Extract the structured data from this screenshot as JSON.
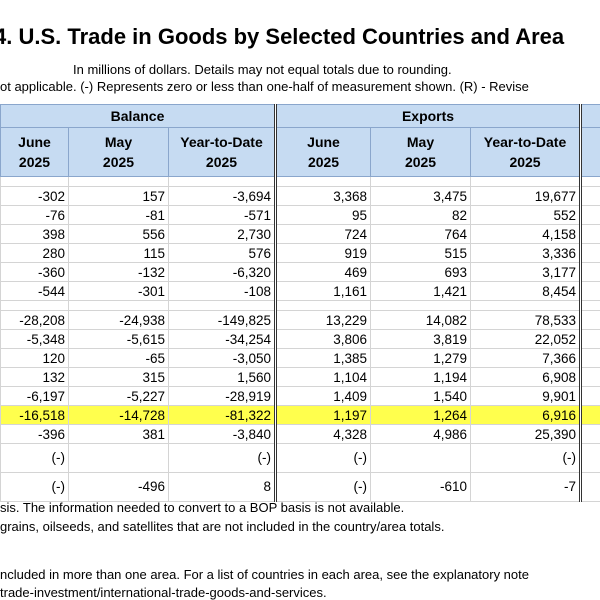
{
  "header": {
    "title": "4. U.S. Trade in Goods by Selected Countries and Area",
    "subtitle_lines": [
      "In millions of dollars. Details may not equal totals due to rounding.",
      "ot applicable. (-) Represents zero or less than one-half of measurement shown. (R) - Revise"
    ]
  },
  "table": {
    "groups": [
      "Balance",
      "Exports"
    ],
    "columns": [
      [
        "June",
        "2025"
      ],
      [
        "May",
        "2025"
      ],
      [
        "Year-to-Date",
        "2025"
      ],
      [
        "June",
        "2025"
      ],
      [
        "May",
        "2025"
      ],
      [
        "Year-to-Date",
        "2025"
      ]
    ],
    "row_groups": [
      [
        [
          "-302",
          "157",
          "-3,694",
          "3,368",
          "3,475",
          "19,677"
        ],
        [
          "-76",
          "-81",
          "-571",
          "95",
          "82",
          "552"
        ],
        [
          "398",
          "556",
          "2,730",
          "724",
          "764",
          "4,158"
        ],
        [
          "280",
          "115",
          "576",
          "919",
          "515",
          "3,336"
        ],
        [
          "-360",
          "-132",
          "-6,320",
          "469",
          "693",
          "3,177"
        ],
        [
          "-544",
          "-301",
          "-108",
          "1,161",
          "1,421",
          "8,454"
        ]
      ],
      [
        [
          "-28,208",
          "-24,938",
          "-149,825",
          "13,229",
          "14,082",
          "78,533"
        ],
        [
          "-5,348",
          "-5,615",
          "-34,254",
          "3,806",
          "3,819",
          "22,052"
        ],
        [
          "120",
          "-65",
          "-3,050",
          "1,385",
          "1,279",
          "7,366"
        ],
        [
          "132",
          "315",
          "1,560",
          "1,104",
          "1,194",
          "6,908"
        ],
        [
          "-6,197",
          "-5,227",
          "-28,919",
          "1,409",
          "1,540",
          "9,901"
        ],
        [
          "-16,518",
          "-14,728",
          "-81,322",
          "1,197",
          "1,264",
          "6,916"
        ],
        [
          "-396",
          "381",
          "-3,840",
          "4,328",
          "4,986",
          "25,390"
        ]
      ],
      [
        [
          "(-)",
          null,
          "(-)",
          "(-)",
          null,
          "(-)"
        ],
        [
          "(-)",
          "-496",
          "8",
          "(-)",
          "-610",
          "-7"
        ]
      ]
    ],
    "highlight": {
      "group": 1,
      "row": 5,
      "color": "#ffff4d"
    }
  },
  "footnotes": [
    "sis. The information needed to convert to a BOP basis is not available.",
    "grains, oilseeds, and satellites that are not included in the country/area totals.",
    "ncluded in more than one area. For a list of countries in each area, see the explanatory note",
    "trade-investment/international-trade-goods-and-services."
  ]
}
